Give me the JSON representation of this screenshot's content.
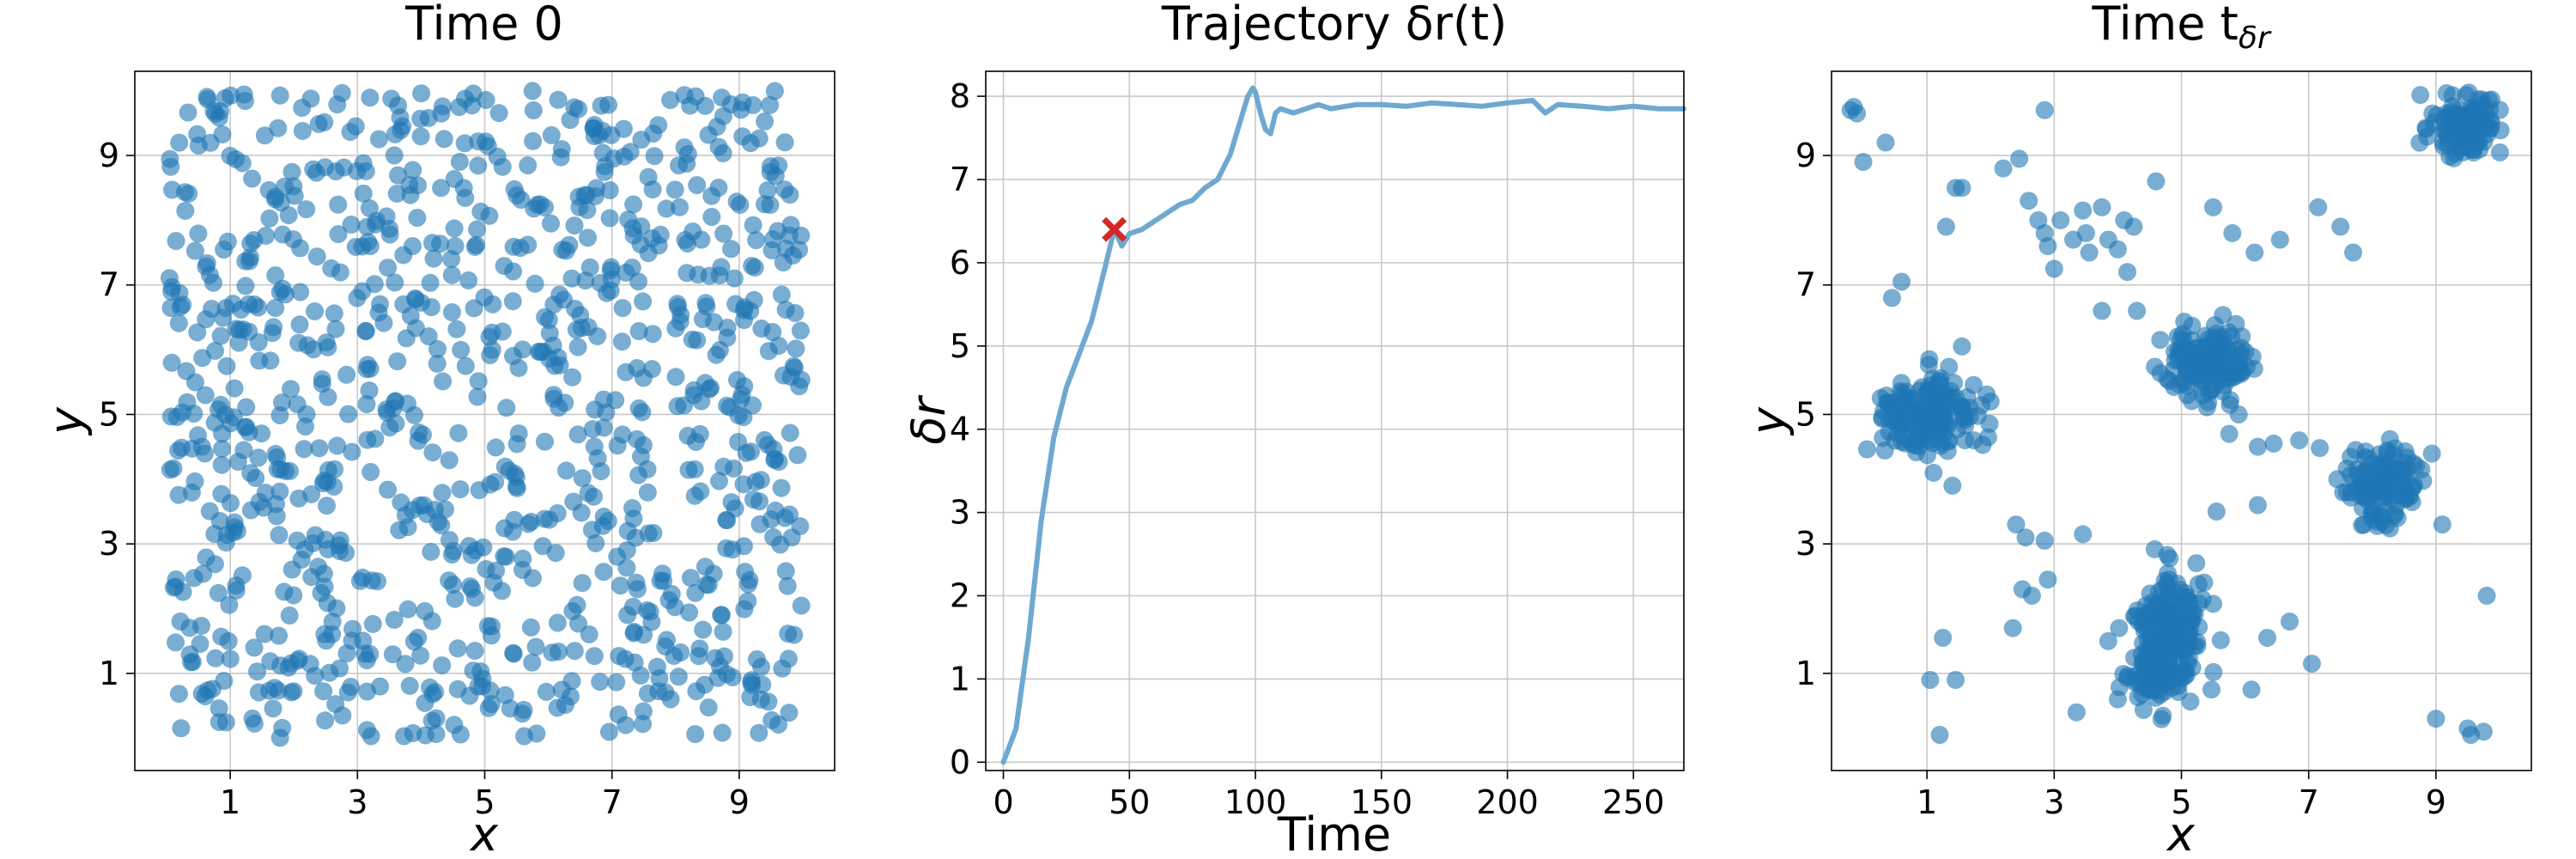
{
  "chart_data": [
    {
      "type": "scatter",
      "title": "Time 0",
      "xlabel": "x",
      "ylabel": "y",
      "xlim": [
        -0.5,
        10.5
      ],
      "ylim": [
        -0.5,
        10.3
      ],
      "xticks": [
        "1",
        "3",
        "5",
        "7",
        "9"
      ],
      "yticks": [
        "1",
        "3",
        "5",
        "7",
        "9"
      ],
      "grid": true,
      "color": "#1f77b4",
      "distribution": "uniform",
      "n_points": 1000,
      "x_range": [
        0,
        10
      ],
      "y_range": [
        0,
        10
      ]
    },
    {
      "type": "line",
      "title": "Trajectory δr(t)",
      "xlabel": "Time",
      "ylabel": "δr",
      "xlim": [
        -7,
        270
      ],
      "ylim": [
        -0.1,
        8.3
      ],
      "xticks": [
        "0",
        "50",
        "100",
        "150",
        "200",
        "250"
      ],
      "yticks": [
        "0",
        "1",
        "2",
        "3",
        "4",
        "5",
        "6",
        "7",
        "8"
      ],
      "grid": true,
      "color": "#6fa8d0",
      "marker_color": "#d62728",
      "x": [
        0,
        5,
        10,
        15,
        20,
        25,
        30,
        35,
        40,
        44,
        47,
        50,
        55,
        60,
        65,
        70,
        75,
        80,
        85,
        90,
        94,
        97,
        99,
        100,
        102,
        104,
        106,
        108,
        110,
        115,
        120,
        125,
        130,
        140,
        150,
        160,
        170,
        180,
        190,
        200,
        210,
        215,
        220,
        230,
        240,
        250,
        260,
        270
      ],
      "y": [
        0.0,
        0.4,
        1.5,
        2.9,
        3.9,
        4.5,
        4.9,
        5.3,
        5.9,
        6.4,
        6.2,
        6.35,
        6.4,
        6.5,
        6.6,
        6.7,
        6.75,
        6.9,
        7.0,
        7.3,
        7.7,
        8.0,
        8.1,
        8.05,
        7.8,
        7.6,
        7.55,
        7.8,
        7.85,
        7.8,
        7.85,
        7.9,
        7.85,
        7.9,
        7.9,
        7.88,
        7.92,
        7.9,
        7.88,
        7.92,
        7.95,
        7.8,
        7.9,
        7.88,
        7.85,
        7.88,
        7.85,
        7.85
      ],
      "marker": {
        "x": 44,
        "y": 6.4,
        "symbol": "x"
      }
    },
    {
      "type": "scatter",
      "title": "Time tδr",
      "title_main": "Time t",
      "title_sub": "δr",
      "xlabel": "x",
      "ylabel": "y",
      "xlim": [
        -0.5,
        10.5
      ],
      "ylim": [
        -0.5,
        10.3
      ],
      "xticks": [
        "1",
        "3",
        "5",
        "7",
        "9"
      ],
      "yticks": [
        "1",
        "3",
        "5",
        "7",
        "9"
      ],
      "grid": true,
      "color": "#1f77b4",
      "distribution": "clustered",
      "clusters": [
        {
          "cx": 0.95,
          "cy": 4.95,
          "sx": 0.35,
          "sy": 0.3,
          "n": 180
        },
        {
          "cx": 5.4,
          "cy": 5.8,
          "sx": 0.35,
          "sy": 0.3,
          "n": 170
        },
        {
          "cx": 8.15,
          "cy": 3.95,
          "sx": 0.3,
          "sy": 0.3,
          "n": 140
        },
        {
          "cx": 9.45,
          "cy": 9.5,
          "sx": 0.28,
          "sy": 0.22,
          "n": 130
        },
        {
          "cx": 4.8,
          "cy": 1.6,
          "sx": 0.3,
          "sy": 0.45,
          "n": 230
        },
        {
          "cx": 4.55,
          "cy": 0.9,
          "sx": 0.2,
          "sy": 0.18,
          "n": 60
        }
      ],
      "scattered": [
        [
          -0.2,
          9.7
        ],
        [
          -0.15,
          9.75
        ],
        [
          -0.1,
          9.65
        ],
        [
          0.0,
          8.9
        ],
        [
          0.35,
          9.2
        ],
        [
          1.45,
          8.5
        ],
        [
          1.55,
          8.5
        ],
        [
          1.3,
          7.9
        ],
        [
          2.2,
          8.8
        ],
        [
          2.45,
          8.95
        ],
        [
          2.85,
          9.7
        ],
        [
          2.6,
          8.3
        ],
        [
          2.75,
          8.0
        ],
        [
          2.85,
          7.8
        ],
        [
          2.9,
          7.6
        ],
        [
          3.0,
          7.25
        ],
        [
          3.1,
          8.0
        ],
        [
          3.3,
          7.7
        ],
        [
          3.45,
          8.15
        ],
        [
          3.5,
          7.8
        ],
        [
          3.55,
          7.5
        ],
        [
          3.75,
          8.2
        ],
        [
          3.85,
          7.7
        ],
        [
          4.0,
          7.55
        ],
        [
          4.1,
          8.0
        ],
        [
          4.25,
          7.9
        ],
        [
          4.6,
          8.6
        ],
        [
          4.15,
          7.2
        ],
        [
          3.75,
          6.6
        ],
        [
          4.3,
          6.6
        ],
        [
          0.45,
          6.8
        ],
        [
          0.6,
          7.05
        ],
        [
          1.55,
          6.05
        ],
        [
          2.0,
          5.2
        ],
        [
          1.6,
          4.6
        ],
        [
          1.4,
          3.9
        ],
        [
          5.5,
          8.2
        ],
        [
          5.8,
          7.8
        ],
        [
          6.15,
          7.5
        ],
        [
          6.55,
          7.7
        ],
        [
          7.15,
          8.2
        ],
        [
          7.5,
          7.9
        ],
        [
          7.7,
          7.5
        ],
        [
          5.75,
          4.7
        ],
        [
          5.9,
          5.0
        ],
        [
          6.2,
          4.5
        ],
        [
          6.45,
          4.55
        ],
        [
          6.85,
          4.6
        ],
        [
          6.2,
          3.6
        ],
        [
          7.45,
          4.0
        ],
        [
          7.6,
          3.8
        ],
        [
          9.1,
          3.3
        ],
        [
          2.4,
          3.3
        ],
        [
          2.55,
          3.1
        ],
        [
          2.85,
          3.05
        ],
        [
          3.45,
          3.15
        ],
        [
          2.5,
          2.3
        ],
        [
          2.65,
          2.2
        ],
        [
          2.9,
          2.45
        ],
        [
          2.35,
          1.7
        ],
        [
          3.85,
          1.5
        ],
        [
          4.0,
          0.6
        ],
        [
          3.35,
          0.4
        ],
        [
          1.05,
          0.9
        ],
        [
          1.25,
          1.55
        ],
        [
          1.45,
          0.9
        ],
        [
          1.2,
          0.05
        ],
        [
          6.7,
          1.8
        ],
        [
          6.35,
          1.55
        ],
        [
          6.1,
          0.75
        ],
        [
          7.05,
          1.15
        ],
        [
          9.0,
          0.3
        ],
        [
          9.5,
          0.15
        ],
        [
          9.55,
          0.05
        ],
        [
          9.75,
          0.1
        ],
        [
          9.8,
          2.2
        ],
        [
          5.55,
          3.5
        ]
      ]
    }
  ]
}
